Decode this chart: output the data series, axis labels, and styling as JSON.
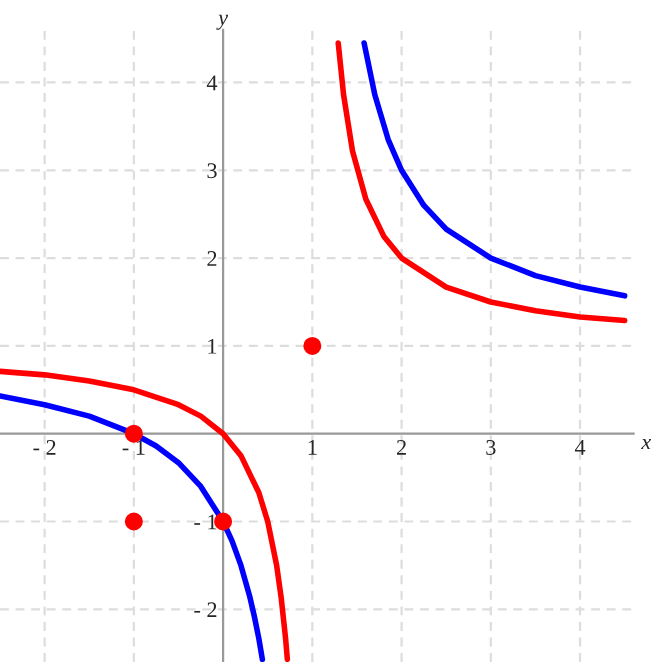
{
  "chart_data": {
    "type": "line",
    "xlabel": "x",
    "ylabel": "y",
    "xlim": [
      -2.5,
      4.6
    ],
    "ylim": [
      -2.6,
      4.6
    ],
    "xticks": [
      {
        "value": -2,
        "label": "- 2"
      },
      {
        "value": -1,
        "label": "- 1"
      },
      1,
      2,
      3,
      4
    ],
    "yticks": [
      {
        "value": -2,
        "label": "- 2"
      },
      {
        "value": -1,
        "label": "- 1"
      },
      1,
      2,
      3,
      4
    ],
    "grid": true,
    "legend": false,
    "series": [
      {
        "color": "#0000ff",
        "x": [
          -2.5,
          -2,
          -1.5,
          -1,
          -0.75,
          -0.5,
          -0.25,
          0,
          0.1,
          0.2,
          0.3,
          0.35,
          0.4,
          0.44,
          1,
          1.58,
          1.7,
          1.85,
          2,
          2.25,
          2.5,
          3,
          3.5,
          4,
          4.5
        ],
        "values": [
          0.43,
          0.33,
          0.2,
          0,
          -0.14,
          -0.33,
          -0.6,
          -1,
          -1.22,
          -1.5,
          -1.86,
          -2.08,
          -2.33,
          -2.57,
          null,
          4.45,
          3.86,
          3.35,
          3,
          2.6,
          2.33,
          2,
          1.8,
          1.67,
          1.57
        ]
      },
      {
        "color": "#ff0000",
        "x": [
          -2.5,
          -2,
          -1.5,
          -1,
          -0.5,
          -0.25,
          0,
          0.2,
          0.4,
          0.5,
          0.6,
          0.65,
          0.7,
          0.72,
          1,
          1.29,
          1.35,
          1.45,
          1.6,
          1.8,
          2,
          2.5,
          3,
          3.5,
          4,
          4.5
        ],
        "values": [
          0.71,
          0.67,
          0.6,
          0.5,
          0.33,
          0.2,
          0,
          -0.25,
          -0.67,
          -1,
          -1.5,
          -1.86,
          -2.33,
          -2.57,
          null,
          4.45,
          3.86,
          3.22,
          2.67,
          2.25,
          2,
          1.67,
          1.5,
          1.4,
          1.33,
          1.29
        ]
      },
      {
        "type": "scatter",
        "color": "#ff0000",
        "marker": "circle",
        "x": [
          -1,
          -1,
          0,
          1
        ],
        "values": [
          0,
          -1,
          -1,
          1
        ]
      }
    ]
  }
}
